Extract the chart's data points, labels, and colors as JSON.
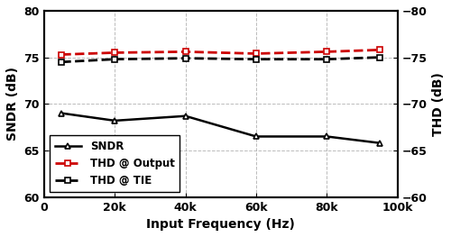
{
  "x": [
    5000,
    20000,
    40000,
    60000,
    80000,
    95000
  ],
  "sndr": [
    69.0,
    68.2,
    68.7,
    66.5,
    66.5,
    65.8
  ],
  "thd_output": [
    75.3,
    75.5,
    75.6,
    75.4,
    75.6,
    75.8
  ],
  "thd_tie": [
    74.5,
    74.8,
    74.9,
    74.8,
    74.8,
    75.0
  ],
  "xlim": [
    0,
    100000
  ],
  "ylim_left": [
    60,
    80
  ],
  "ylim_right": [
    -80,
    -60
  ],
  "xlabel": "Input Frequency (Hz)",
  "ylabel_left": "SNDR (dB)",
  "ylabel_right": "THD (dB)",
  "xticks": [
    0,
    20000,
    40000,
    60000,
    80000,
    100000
  ],
  "xtick_labels": [
    "0",
    "20k",
    "40k",
    "60k",
    "80k",
    "100k"
  ],
  "yticks_left": [
    60,
    65,
    70,
    75,
    80
  ],
  "yticks_right": [
    -80,
    -75,
    -70,
    -65,
    -60
  ],
  "sndr_color": "#000000",
  "thd_output_color": "#cc0000",
  "thd_tie_color": "#000000",
  "grid_color": "#aaaaaa",
  "background_color": "#ffffff",
  "legend_labels": [
    "SNDR",
    "THD @ Output",
    "THD @ TIE"
  ]
}
